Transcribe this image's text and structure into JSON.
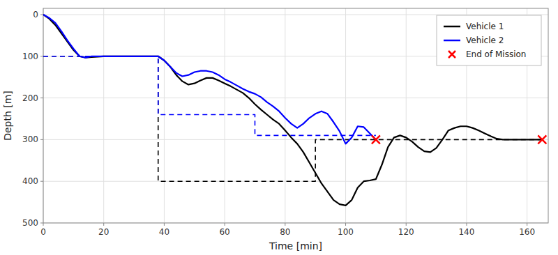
{
  "chart_data": {
    "type": "line",
    "xlabel": "Time [min]",
    "ylabel": "Depth [m]",
    "xlim": [
      0,
      167
    ],
    "ylim": [
      500,
      -15
    ],
    "xticks": [
      0,
      20,
      40,
      60,
      80,
      100,
      120,
      140,
      160
    ],
    "yticks": [
      0,
      100,
      200,
      300,
      400,
      500
    ],
    "grid": true,
    "legend": "upper right",
    "series": [
      {
        "color": "#000000",
        "line_style": "dashed",
        "x": [
          0,
          38,
          38,
          90,
          90,
          115,
          115,
          165
        ],
        "values": [
          100,
          100,
          400,
          400,
          300,
          300,
          300,
          300
        ]
      },
      {
        "color": "#0000ff",
        "line_style": "dashed",
        "x": [
          0,
          38,
          38,
          70,
          70,
          110
        ],
        "values": [
          100,
          100,
          240,
          240,
          290,
          290
        ]
      },
      {
        "name": "Vehicle 1",
        "color": "#000000",
        "line_style": "solid",
        "x": [
          0,
          2,
          4,
          6,
          8,
          10,
          12,
          14,
          16,
          18,
          20,
          22,
          24,
          26,
          28,
          30,
          32,
          34,
          36,
          38,
          40,
          42,
          44,
          46,
          48,
          50,
          52,
          54,
          56,
          58,
          60,
          62,
          64,
          66,
          68,
          70,
          72,
          74,
          76,
          78,
          80,
          82,
          84,
          86,
          88,
          90,
          92,
          94,
          96,
          98,
          100,
          102,
          104,
          106,
          108,
          110,
          112,
          114,
          116,
          118,
          120,
          122,
          124,
          126,
          128,
          130,
          132,
          134,
          136,
          138,
          140,
          142,
          144,
          146,
          148,
          150,
          152,
          154,
          156,
          158,
          160,
          162,
          164,
          165
        ],
        "values": [
          0,
          10,
          25,
          45,
          65,
          85,
          100,
          103,
          102,
          101,
          100,
          100,
          100,
          100,
          100,
          100,
          100,
          100,
          100,
          100,
          110,
          125,
          145,
          160,
          168,
          165,
          158,
          152,
          152,
          158,
          165,
          172,
          180,
          188,
          200,
          215,
          228,
          240,
          252,
          262,
          278,
          295,
          310,
          330,
          355,
          380,
          405,
          425,
          445,
          455,
          458,
          445,
          415,
          400,
          398,
          395,
          360,
          318,
          295,
          290,
          295,
          305,
          318,
          328,
          330,
          320,
          300,
          278,
          272,
          268,
          268,
          272,
          278,
          285,
          292,
          298,
          300,
          300,
          300,
          300,
          300,
          300,
          300,
          300
        ]
      },
      {
        "name": "Vehicle 2",
        "color": "#0000ff",
        "line_style": "solid",
        "x": [
          0,
          2,
          4,
          6,
          8,
          10,
          12,
          14,
          16,
          18,
          20,
          22,
          24,
          26,
          28,
          30,
          32,
          34,
          36,
          38,
          40,
          42,
          44,
          46,
          48,
          50,
          52,
          54,
          56,
          58,
          60,
          62,
          64,
          66,
          68,
          70,
          72,
          74,
          76,
          78,
          80,
          82,
          84,
          86,
          88,
          90,
          92,
          94,
          96,
          98,
          100,
          102,
          104,
          106,
          108,
          110
        ],
        "values": [
          0,
          8,
          20,
          40,
          62,
          82,
          100,
          103,
          100,
          100,
          100,
          100,
          100,
          100,
          100,
          100,
          100,
          100,
          100,
          100,
          110,
          125,
          140,
          148,
          145,
          138,
          135,
          135,
          138,
          145,
          155,
          162,
          170,
          178,
          185,
          190,
          198,
          210,
          220,
          232,
          248,
          262,
          272,
          262,
          248,
          238,
          232,
          238,
          258,
          280,
          310,
          295,
          268,
          270,
          285,
          300
        ]
      },
      {
        "name": "End of Mission",
        "type": "scatter",
        "marker": "x",
        "color": "#ff0000",
        "x": [
          165,
          110
        ],
        "values": [
          300,
          300
        ]
      }
    ]
  }
}
